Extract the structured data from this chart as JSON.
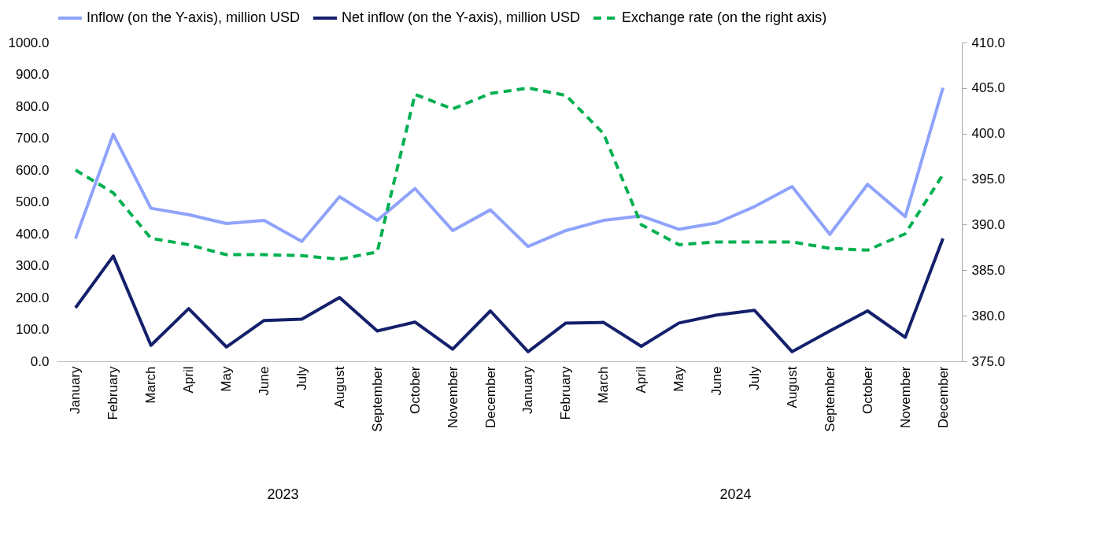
{
  "chart_data": {
    "type": "line",
    "categories": [
      "January",
      "February",
      "March",
      "April",
      "May",
      "June",
      "July",
      "August",
      "September",
      "October",
      "November",
      "December",
      "January",
      "February",
      "March",
      "April",
      "May",
      "June",
      "July",
      "August",
      "September",
      "October",
      "November",
      "December"
    ],
    "series": [
      {
        "name": "Inflow (on the Y-axis), million USD",
        "color": "#8fa3fb",
        "line_style": "solid",
        "values": [
          385,
          712,
          480,
          460,
          432,
          442,
          376,
          516,
          442,
          542,
          410,
          475,
          360,
          410,
          442,
          456,
          414,
          434,
          485,
          548,
          398,
          555,
          454,
          858
        ]
      },
      {
        "name": "Net inflow (on the Y-axis), million USD",
        "color": "#14206b",
        "line_style": "solid",
        "values": [
          168,
          330,
          50,
          165,
          45,
          128,
          132,
          200,
          95,
          123,
          38,
          158,
          30,
          120,
          122,
          47,
          120,
          145,
          160,
          30,
          95,
          158,
          75,
          385
        ]
      },
      {
        "name": "Exchange rate (on the right axis)",
        "color": "#00b050",
        "line_style": "dashed",
        "axis": "y2",
        "values": [
          396,
          393.5,
          388.5,
          387.8,
          386.7,
          386.7,
          386.6,
          386.2,
          387,
          404.3,
          402.7,
          404.4,
          405,
          404.2,
          400,
          390,
          387.8,
          388.1,
          388.1,
          388.1,
          387.4,
          387.2,
          389,
          395.5
        ]
      }
    ],
    "ylim": [
      0,
      1000
    ],
    "yticks": [
      {
        "value": 0,
        "label": "0.0"
      },
      {
        "value": 100,
        "label": "100.0"
      },
      {
        "value": 200,
        "label": "200.0"
      },
      {
        "value": 300,
        "label": "300.0"
      },
      {
        "value": 400,
        "label": "400.0"
      },
      {
        "value": 500,
        "label": "500.0"
      },
      {
        "value": 600,
        "label": "600.0"
      },
      {
        "value": 700,
        "label": "700.0"
      },
      {
        "value": 800,
        "label": "800.0"
      },
      {
        "value": 900,
        "label": "900.0"
      },
      {
        "value": 1000,
        "label": "1000.0"
      }
    ],
    "y2lim": [
      375,
      410
    ],
    "y2ticks": [
      {
        "value": 375,
        "label": "375.0"
      },
      {
        "value": 380,
        "label": "380.0"
      },
      {
        "value": 385,
        "label": "385.0"
      },
      {
        "value": 390,
        "label": "390.0"
      },
      {
        "value": 395,
        "label": "395.0"
      },
      {
        "value": 400,
        "label": "400.0"
      },
      {
        "value": 405,
        "label": "405.0"
      },
      {
        "value": 410,
        "label": "410.0"
      }
    ],
    "annotations": [
      "2023",
      "2024"
    ],
    "legend": "top",
    "grid": false
  }
}
